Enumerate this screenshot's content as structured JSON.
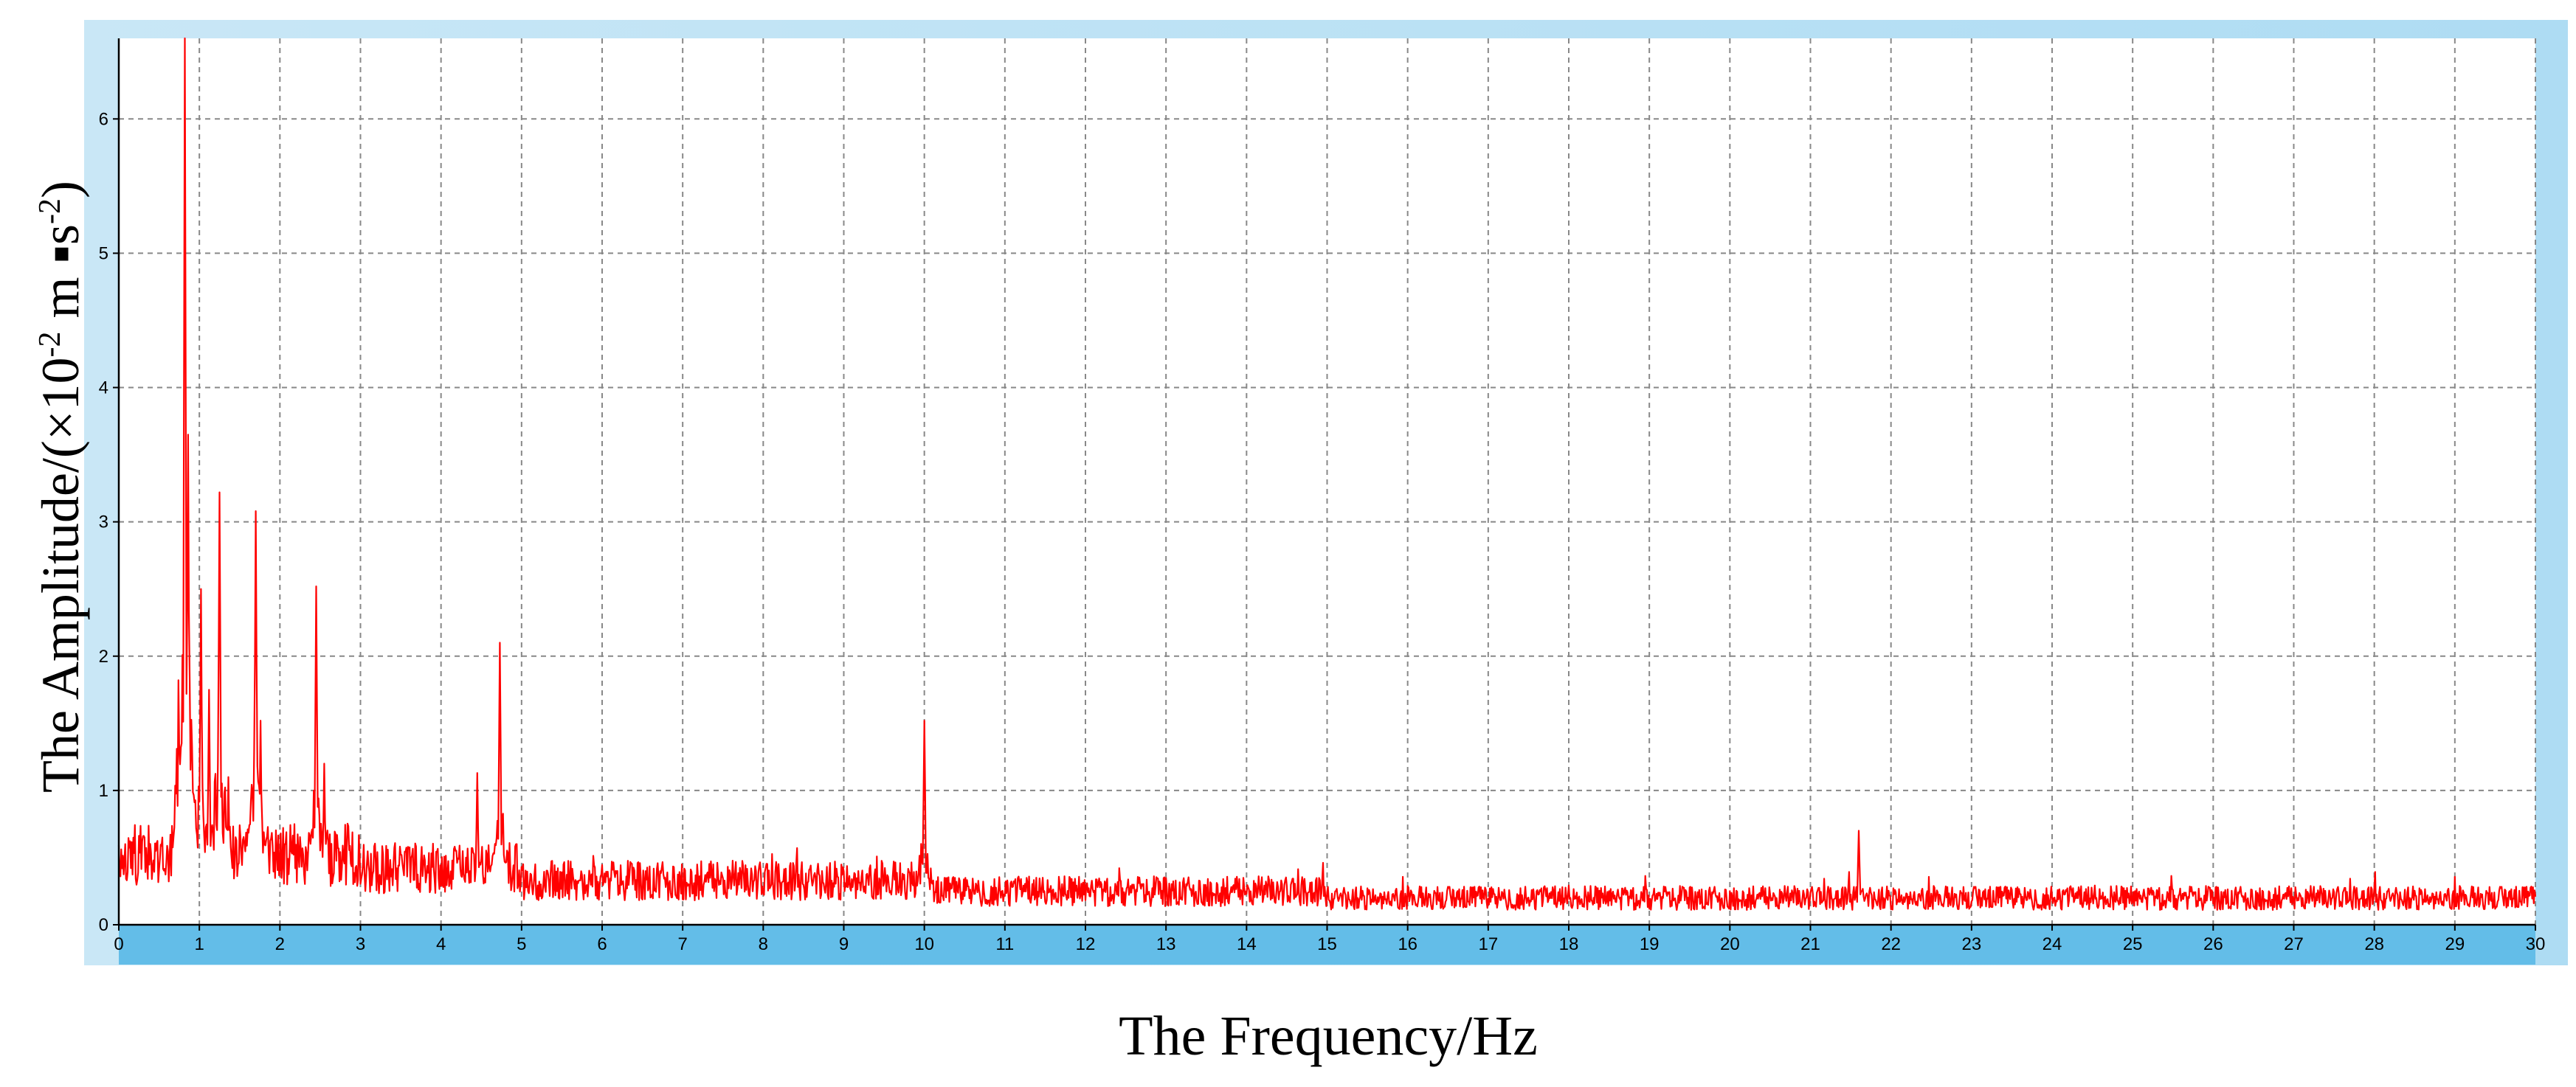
{
  "chart_data": {
    "type": "line",
    "title": "",
    "xlabel": "The Frequency/Hz",
    "ylabel": "The Amplitude/(×10",
    "ylabel_sup1": "-2",
    "ylabel_mid": " m ▪s",
    "ylabel_sup2": "-2",
    "ylabel_end": ")",
    "xlim": [
      0,
      30
    ],
    "ylim": [
      0,
      6.6
    ],
    "x_ticks": [
      0,
      1,
      2,
      3,
      4,
      5,
      6,
      7,
      8,
      9,
      10,
      11,
      12,
      13,
      14,
      15,
      16,
      17,
      18,
      19,
      20,
      21,
      22,
      23,
      24,
      25,
      26,
      27,
      28,
      29,
      30
    ],
    "y_ticks": [
      0,
      1,
      2,
      3,
      4,
      5,
      6
    ],
    "grid": true,
    "series": [
      {
        "color": "#ff0000",
        "baseline": 0.3,
        "peaks": [
          {
            "x": 0.82,
            "y": 6.6
          },
          {
            "x": 0.86,
            "y": 3.65
          },
          {
            "x": 1.02,
            "y": 2.5
          },
          {
            "x": 1.12,
            "y": 1.75
          },
          {
            "x": 1.25,
            "y": 3.22
          },
          {
            "x": 1.36,
            "y": 1.1
          },
          {
            "x": 1.7,
            "y": 3.08
          },
          {
            "x": 1.76,
            "y": 1.52
          },
          {
            "x": 2.45,
            "y": 2.52
          },
          {
            "x": 2.55,
            "y": 1.2
          },
          {
            "x": 4.45,
            "y": 1.13
          },
          {
            "x": 4.73,
            "y": 2.1
          },
          {
            "x": 10.0,
            "y": 1.52
          },
          {
            "x": 21.6,
            "y": 0.7
          }
        ]
      }
    ]
  },
  "colors": {
    "frame_background": "#bfe3f5",
    "plot_background": "#ffffff",
    "grid": "#888888",
    "axis_bar": "#63bde8",
    "line": "#ff0000"
  }
}
